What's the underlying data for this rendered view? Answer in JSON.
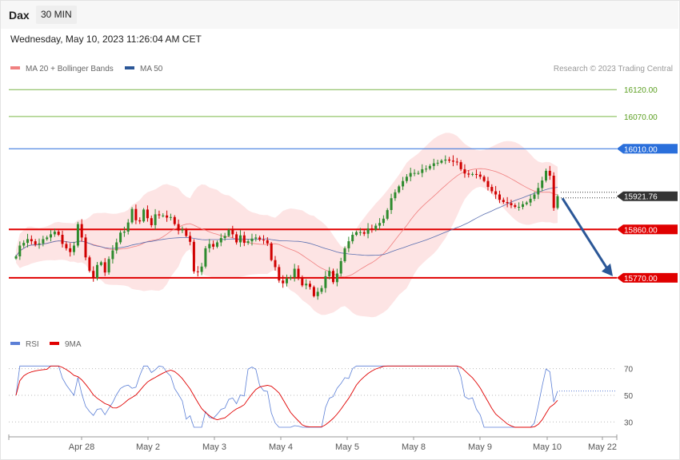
{
  "header": {
    "instrument": "Dax",
    "timeframe": "30 MIN"
  },
  "timestamp": "Wednesday, May 10, 2023 11:26:04 AM CET",
  "credit": "Research © 2023 Trading Central",
  "legend": {
    "price": [
      {
        "label": "MA 20 + Bollinger Bands",
        "color": "#f08080"
      },
      {
        "label": "MA 50",
        "color": "#2b5797"
      }
    ],
    "rsi": [
      {
        "label": "RSI",
        "color": "#5b7fd6"
      },
      {
        "label": "9MA",
        "color": "#e00000"
      }
    ]
  },
  "chart_data": [
    {
      "type": "candlestick",
      "title": "Dax",
      "ylim": [
        15660,
        16150
      ],
      "x_ticks": [
        "Apr 28",
        "May 2",
        "May 3",
        "May 4",
        "May 5",
        "May 8",
        "May 9",
        "May 10",
        "May 22"
      ],
      "levels": [
        {
          "label": "16120.00",
          "value": 16120,
          "color": "#7ab648",
          "style": "thin"
        },
        {
          "label": "16070.00",
          "value": 16070,
          "color": "#7ab648",
          "style": "thin"
        },
        {
          "label": "16010.00",
          "value": 16010,
          "color": "#2a6fdb",
          "style": "thin"
        },
        {
          "label": "15860.00",
          "value": 15860,
          "color": "#e00000",
          "style": "thick"
        },
        {
          "label": "15770.00",
          "value": 15770,
          "color": "#e00000",
          "style": "thick"
        }
      ],
      "last_price": {
        "label": "15921.76",
        "value": 15921.76
      },
      "projection": {
        "from": 15918,
        "to": 15770,
        "color": "#2b5797"
      },
      "close_series": [
        15810,
        15830,
        15835,
        15842,
        15838,
        15832,
        15834,
        15842,
        15845,
        15851,
        15856,
        15850,
        15833,
        15825,
        15818,
        15830,
        15870,
        15845,
        15808,
        15783,
        15770,
        15794,
        15799,
        15780,
        15805,
        15821,
        15836,
        15854,
        15856,
        15873,
        15898,
        15877,
        15875,
        15897,
        15881,
        15868,
        15888,
        15886,
        15886,
        15882,
        15883,
        15870,
        15858,
        15860,
        15848,
        15837,
        15782,
        15781,
        15791,
        15825,
        15833,
        15828,
        15836,
        15844,
        15848,
        15859,
        15851,
        15836,
        15849,
        15835,
        15838,
        15843,
        15845,
        15841,
        15840,
        15834,
        15803,
        15790,
        15765,
        15760,
        15769,
        15771,
        15787,
        15771,
        15756,
        15759,
        15753,
        15736,
        15744,
        15751,
        15773,
        15783,
        15762,
        15778,
        15801,
        15825,
        15838,
        15850,
        15855,
        15855,
        15852,
        15862,
        15860,
        15867,
        15872,
        15880,
        15896,
        15918,
        15929,
        15940,
        15950,
        15958,
        15965,
        15965,
        15965,
        15972,
        15973,
        15978,
        15983,
        15984,
        15988,
        15990,
        15988,
        15986,
        15985,
        15972,
        15964,
        15962,
        15963,
        15962,
        15958,
        15950,
        15939,
        15931,
        15925,
        15915,
        15911,
        15909,
        15905,
        15902,
        15902,
        15907,
        15910,
        15917,
        15925,
        15937,
        15951,
        15969,
        15960,
        15900,
        15921.76
      ]
    },
    {
      "type": "line",
      "title": "RSI",
      "ylim": [
        20,
        80
      ],
      "y_ticks": [
        70,
        50,
        30
      ],
      "series": [
        {
          "name": "RSI",
          "color": "#5b7fd6"
        },
        {
          "name": "9MA",
          "color": "#e00000"
        }
      ]
    }
  ]
}
